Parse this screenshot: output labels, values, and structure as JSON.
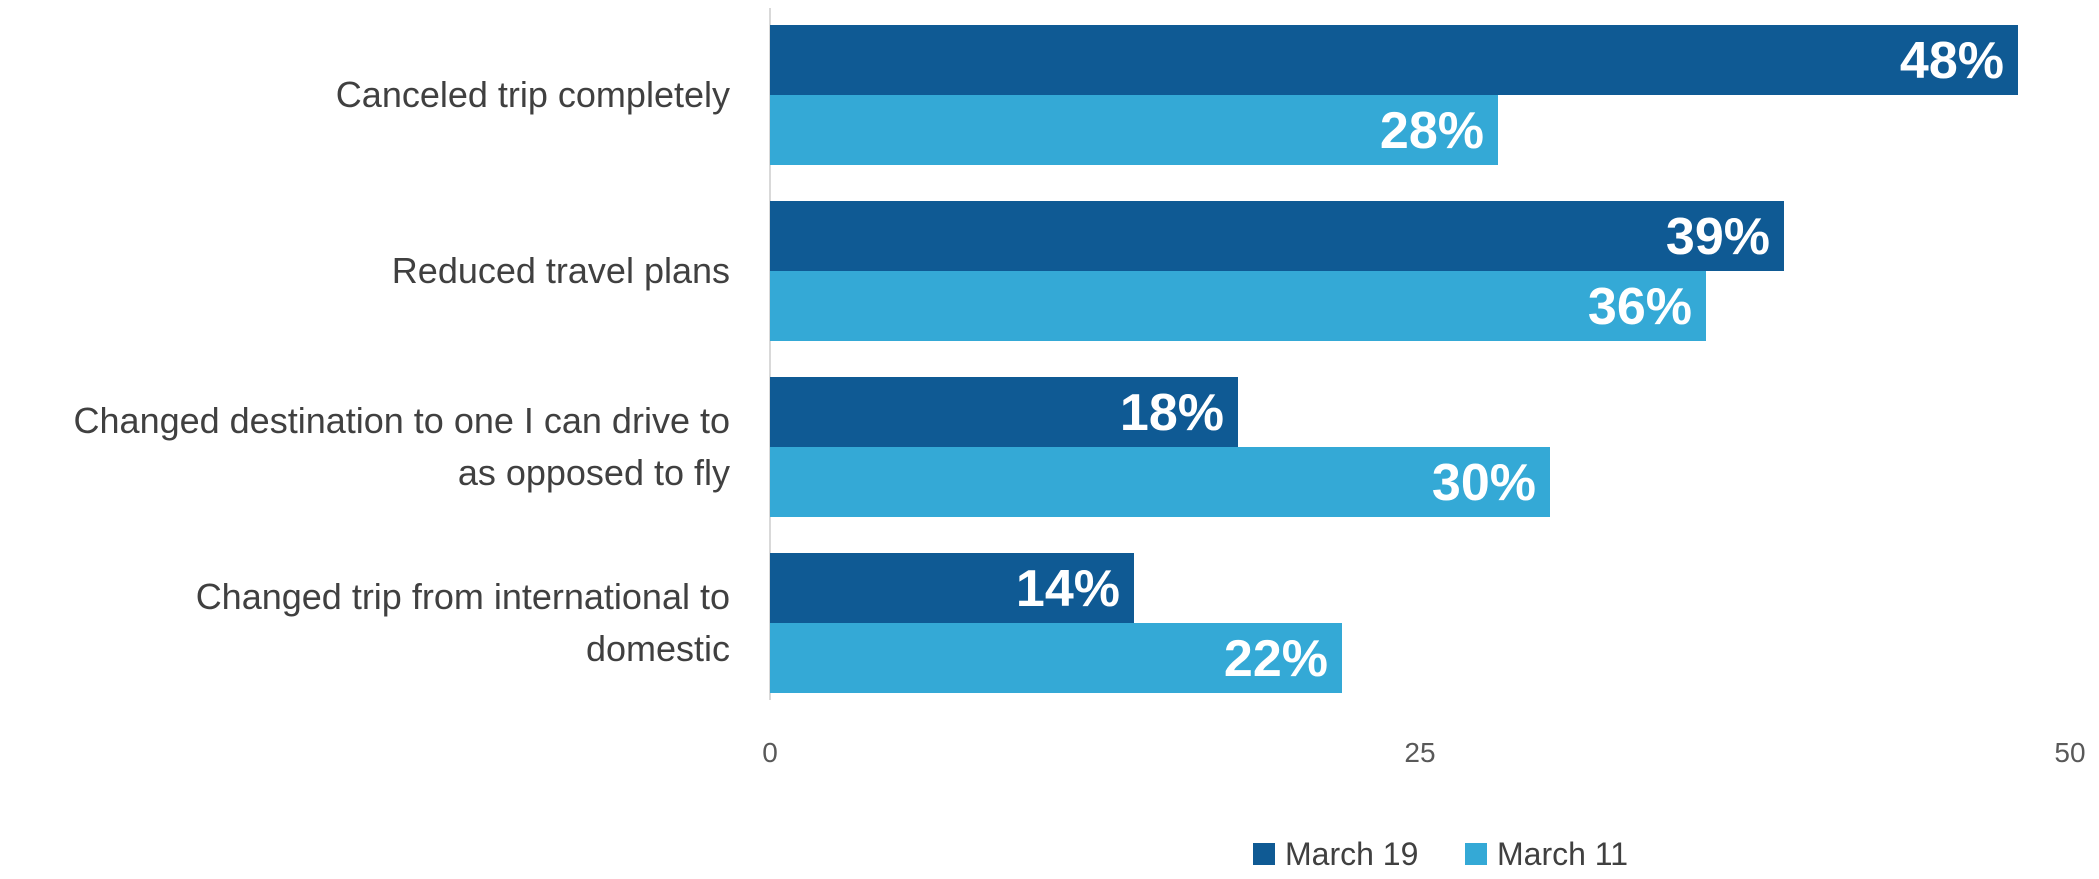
{
  "chart_data": {
    "type": "bar",
    "orientation": "horizontal",
    "categories": [
      [
        "Canceled trip completely"
      ],
      [
        "Reduced travel plans"
      ],
      [
        "Changed destination to one I can drive to",
        "as opposed to fly"
      ],
      [
        "Changed trip from international to",
        "domestic"
      ]
    ],
    "series": [
      {
        "name": "March 19",
        "color": "#0F5A94",
        "values": [
          48,
          39,
          18,
          14
        ],
        "labels": [
          "48%",
          "39%",
          "18%",
          "14%"
        ]
      },
      {
        "name": "March 11",
        "color": "#34A9D6",
        "values": [
          28,
          36,
          30,
          22
        ],
        "labels": [
          "28%",
          "36%",
          "30%",
          "22%"
        ]
      }
    ],
    "xlim": [
      0,
      50
    ],
    "ticks": [
      0,
      25,
      50
    ],
    "tick_labels": [
      "0",
      "25",
      "50"
    ],
    "grid": false,
    "legend_position": "bottom"
  }
}
